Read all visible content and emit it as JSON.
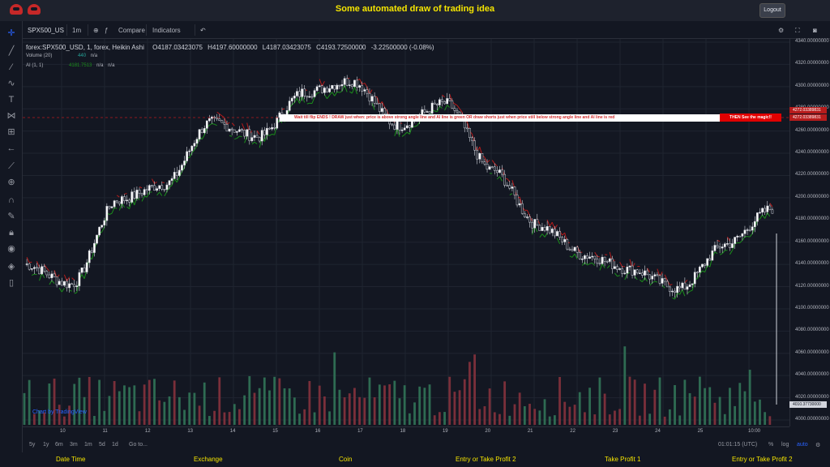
{
  "app": {
    "title": "Some automated draw of trading idea",
    "logout_label": "Logout"
  },
  "toolbar": {
    "symbol": "SPX500_US",
    "interval": "1m",
    "compare_label": "Compare",
    "indicators_label": "Indicators",
    "undo_icon": "undo-icon"
  },
  "legend": {
    "title": "forex:SPX500_USD, 1, forex, Heikin Ashi",
    "open": "O4187.03423075",
    "high": "H4197.60000000",
    "low": "L4187.03423075",
    "close": "C4193.72500000",
    "change": "-3.22500000 (-0.08%)",
    "volume_label": "Volume (20)",
    "volume_value": "440",
    "volume_na": "n/a",
    "ai_label": "AI (1, 1)",
    "ai_value": "4181.7513",
    "ai_na1": "n/a",
    "ai_na2": "n/a"
  },
  "annotation": {
    "text": "Wait till flip ENDS  !   DRAW just when:  price is above strong angle line and AI line is green          OR           draw shorts just when price still below strong angle line and AI line is red",
    "magic": "THEN See the magic!!",
    "level_label_1": "4272.03389831",
    "level_label_2": "4272.03389831",
    "last_price_label": "4010.37730000"
  },
  "price_scale": [
    "4340.00000000",
    "4320.00000000",
    "4300.00000000",
    "4280.00000000",
    "4260.00000000",
    "4240.00000000",
    "4220.00000000",
    "4200.00000000",
    "4180.00000000",
    "4160.00000000",
    "4140.00000000",
    "4120.00000000",
    "4100.00000000",
    "4080.00000000",
    "4060.00000000",
    "4040.00000000",
    "4020.00000000",
    "4000.00000000"
  ],
  "time_axis": [
    "10",
    "11",
    "12",
    "13",
    "14",
    "15",
    "16",
    "17",
    "18",
    "19",
    "20",
    "21",
    "22",
    "23",
    "24",
    "25",
    "10:00"
  ],
  "bottom": {
    "ranges": [
      "5y",
      "1y",
      "6m",
      "3m",
      "1m",
      "5d",
      "1d"
    ],
    "goto": "Go to...",
    "clock": "01:01:15 (UTC)",
    "percent": "%",
    "log": "log",
    "auto": "auto"
  },
  "watermark": "Chart by TradingView",
  "status_bar": [
    "Date Time",
    "Exchange",
    "Coin",
    "Entry or Take Profit 2",
    "Take Profit 1",
    "Entry or Take Profit 2"
  ],
  "colors": {
    "accent": "#f5e500",
    "up": "#26a69a",
    "down": "#ef5350",
    "ai_green": "#1b8f1b",
    "ai_red": "#b71c1c",
    "volume_up": "#2e6b52",
    "volume_down": "#7a2f3a"
  },
  "chart_data": {
    "type": "line",
    "title": "forex:SPX500_USD, 1, forex, Heikin Ashi",
    "ylim": [
      4000,
      4340
    ],
    "x": [
      "10",
      "11",
      "12",
      "13",
      "14",
      "15",
      "16",
      "17",
      "18",
      "19",
      "20",
      "21",
      "22",
      "23",
      "24",
      "25",
      "10:00"
    ],
    "series": [
      {
        "values": [
          4140,
          4122,
          4198,
          4212,
          4268,
          4255,
          4295,
          4305,
          4265,
          4285,
          4225,
          4175,
          4148,
          4135,
          4118,
          4158,
          4190
        ]
      }
    ],
    "reference_level": 4272.03389831
  }
}
